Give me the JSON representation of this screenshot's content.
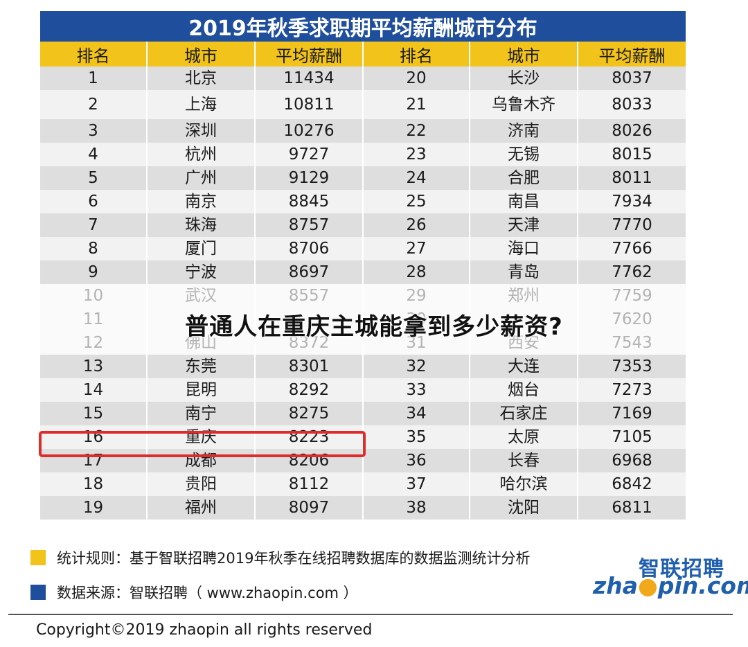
{
  "chart_data": {
    "type": "table",
    "title": "2019年秋季求职期平均薪酬城市分布",
    "columns": [
      "排名",
      "城市",
      "平均薪酬",
      "排名",
      "城市",
      "平均薪酬"
    ],
    "rows": [
      [
        "1",
        "北京",
        "11434",
        "20",
        "长沙",
        "8037"
      ],
      [
        "2",
        "上海",
        "10811",
        "21",
        "乌鲁木齐",
        "8033"
      ],
      [
        "3",
        "深圳",
        "10276",
        "22",
        "济南",
        "8026"
      ],
      [
        "4",
        "杭州",
        "9727",
        "23",
        "无锡",
        "8015"
      ],
      [
        "5",
        "广州",
        "9129",
        "24",
        "合肥",
        "8011"
      ],
      [
        "6",
        "南京",
        "8845",
        "25",
        "南昌",
        "7934"
      ],
      [
        "7",
        "珠海",
        "8757",
        "26",
        "天津",
        "7770"
      ],
      [
        "8",
        "厦门",
        "8706",
        "27",
        "海口",
        "7766"
      ],
      [
        "9",
        "宁波",
        "8697",
        "28",
        "青岛",
        "7762"
      ],
      [
        "10",
        "武汉",
        "8557",
        "29",
        "郑州",
        "7759"
      ],
      [
        "11",
        "",
        "",
        "30",
        "",
        "7620"
      ],
      [
        "12",
        "佛山",
        "8372",
        "31",
        "西安",
        "7543"
      ],
      [
        "13",
        "东莞",
        "8301",
        "32",
        "大连",
        "7353"
      ],
      [
        "14",
        "昆明",
        "8292",
        "33",
        "烟台",
        "7273"
      ],
      [
        "15",
        "南宁",
        "8275",
        "34",
        "石家庄",
        "7169"
      ],
      [
        "16",
        "重庆",
        "8223",
        "35",
        "太原",
        "7105"
      ],
      [
        "17",
        "成都",
        "8206",
        "36",
        "长春",
        "6968"
      ],
      [
        "18",
        "贵阳",
        "8112",
        "37",
        "哈尔滨",
        "6842"
      ],
      [
        "19",
        "福州",
        "8097",
        "38",
        "沈阳",
        "6811"
      ]
    ],
    "highlighted_row": "16",
    "header_color": "#f2c31b",
    "title_bar_color": "#1f4e9d",
    "highlight_color": "#e02b2b"
  },
  "overlay_heading": "普通人在重庆主城能拿到多少薪资?",
  "notes": {
    "method": "统计规则：基于智联招聘2019年秋季在线招聘数据库的数据监测统计分析",
    "source": "数据来源：智联招聘（ www.zhaopin.com ）",
    "method_color": "#f2c31b",
    "source_color": "#1f4e9d"
  },
  "logo": {
    "cn": "智联招聘",
    "en_left": "zha",
    "en_dot": "●",
    "en_right": "pin.com"
  },
  "copyright": "Copyright©2019 zhaopin all rights reserved"
}
